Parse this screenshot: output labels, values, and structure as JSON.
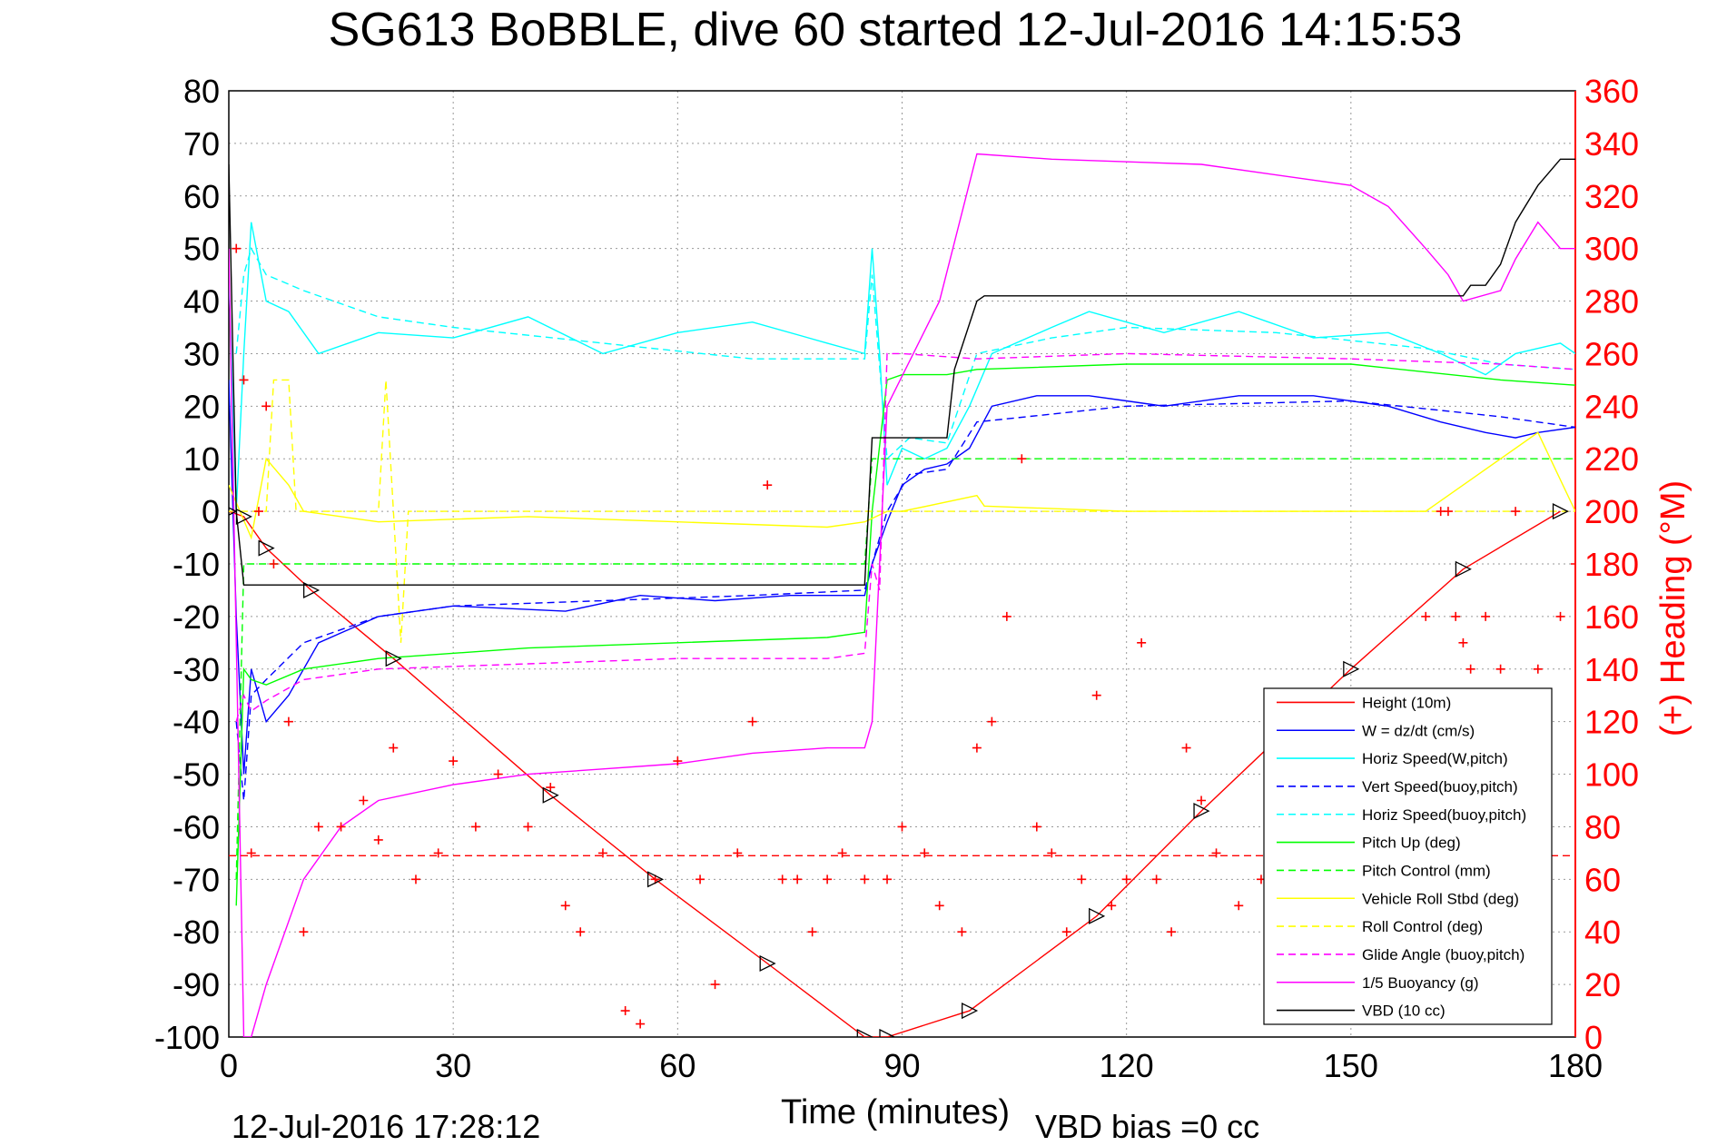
{
  "figure": {
    "title": "SG613 BoBBLE, dive 60 started 12-Jul-2016 14:15:53",
    "footer_left": "12-Jul-2016 17:28:12",
    "footer_right": "VBD bias =0 cc",
    "colors": {
      "height": "#ff0000",
      "w": "#0000ff",
      "horiz": "#00ffff",
      "pitch": "#00ff00",
      "roll": "#ffff00",
      "glide": "#ff00ff",
      "buoy": "#ff00ff",
      "vbd": "#000000",
      "heading": "#ff0000"
    }
  },
  "chart_data": {
    "type": "line",
    "xlabel": "Time (minutes)",
    "ylabel_right": "(+) Heading (°M)",
    "xlim": [
      0,
      180
    ],
    "ylim": [
      -100,
      80
    ],
    "y2lim": [
      0,
      360
    ],
    "xticks": [
      "0",
      "30",
      "60",
      "90",
      "120",
      "150",
      "180"
    ],
    "yticks": [
      "-100",
      "-90",
      "-80",
      "-70",
      "-60",
      "-50",
      "-40",
      "-30",
      "-20",
      "-10",
      "0",
      "10",
      "20",
      "30",
      "40",
      "50",
      "60",
      "70",
      "80"
    ],
    "y2ticks": [
      "0",
      "20",
      "40",
      "60",
      "80",
      "100",
      "120",
      "140",
      "160",
      "180",
      "200",
      "220",
      "240",
      "260",
      "280",
      "300",
      "320",
      "340",
      "360"
    ],
    "grid": true,
    "legend_position": "bottom-right",
    "legend": [
      "Height (10m)",
      "W = dz/dt (cm/s)",
      "Horiz Speed(W,pitch)",
      "Vert Speed(buoy,pitch)",
      "Horiz Speed(buoy,pitch)",
      "Pitch Up (deg)",
      "Pitch Control (mm)",
      "Vehicle Roll Stbd (deg)",
      "Roll Control (deg)",
      "Glide Angle (buoy,pitch)",
      "1/5 Buoyancy (g)",
      "VBD (10 cc)"
    ],
    "series": [
      {
        "name": "Height (10m)",
        "axis": "left",
        "style": "solid",
        "x": [
          0,
          2,
          5,
          11,
          22,
          43,
          57,
          72,
          85,
          88,
          99,
          116,
          130,
          150,
          165,
          178
        ],
        "y": [
          0,
          -1,
          -7,
          -15,
          -28,
          -54,
          -70,
          -86,
          -100,
          -100,
          -95,
          -77,
          -57,
          -30,
          -11,
          0
        ]
      },
      {
        "name": "W = dz/dt (cm/s)",
        "axis": "left",
        "style": "solid",
        "x": [
          0,
          1,
          2,
          3,
          5,
          8,
          12,
          20,
          30,
          45,
          55,
          65,
          75,
          85,
          86,
          88,
          90,
          93,
          96,
          99,
          102,
          108,
          115,
          120,
          125,
          135,
          145,
          155,
          162,
          168,
          172,
          175,
          180
        ],
        "y": [
          25,
          -20,
          -50,
          -30,
          -40,
          -35,
          -25,
          -20,
          -18,
          -19,
          -16,
          -17,
          -16,
          -16,
          -10,
          -2,
          5,
          8,
          9,
          12,
          20,
          22,
          22,
          21,
          20,
          22,
          22,
          20,
          17,
          15,
          14,
          15,
          16
        ]
      },
      {
        "name": "Horiz Speed(W,pitch)",
        "axis": "left",
        "style": "solid",
        "x": [
          0,
          1,
          2,
          3,
          5,
          8,
          12,
          20,
          30,
          40,
          50,
          60,
          70,
          80,
          85,
          86,
          87,
          88,
          90,
          93,
          96,
          99,
          102,
          110,
          115,
          125,
          135,
          145,
          155,
          162,
          168,
          172,
          178,
          180
        ],
        "y": [
          45,
          0,
          30,
          55,
          40,
          38,
          30,
          34,
          33,
          37,
          30,
          34,
          36,
          32,
          30,
          50,
          30,
          5,
          12,
          10,
          12,
          20,
          30,
          35,
          38,
          34,
          38,
          33,
          34,
          30,
          26,
          30,
          32,
          30
        ]
      },
      {
        "name": "Vert Speed(buoy,pitch)",
        "axis": "left",
        "style": "dashed",
        "x": [
          1,
          2,
          3,
          5,
          10,
          20,
          30,
          50,
          70,
          85,
          88,
          91,
          96,
          100,
          120,
          150,
          170,
          180
        ],
        "y": [
          -40,
          -55,
          -35,
          -32,
          -25,
          -20,
          -18,
          -17,
          -16,
          -15,
          0,
          7,
          8,
          17,
          20,
          21,
          18,
          16
        ]
      },
      {
        "name": "Horiz Speed(buoy,pitch)",
        "axis": "left",
        "style": "dashed",
        "x": [
          1,
          2,
          3,
          5,
          10,
          20,
          30,
          50,
          70,
          85,
          86,
          88,
          91,
          96,
          100,
          110,
          120,
          140,
          160,
          170,
          180
        ],
        "y": [
          30,
          45,
          50,
          45,
          42,
          37,
          35,
          32,
          29,
          29,
          45,
          10,
          14,
          13,
          30,
          33,
          35,
          34,
          31,
          28,
          27
        ]
      },
      {
        "name": "Pitch Up (deg)",
        "axis": "left",
        "style": "solid",
        "x": [
          1,
          2,
          3,
          5,
          10,
          20,
          40,
          60,
          80,
          85,
          86,
          88,
          90,
          96,
          100,
          120,
          150,
          170,
          180
        ],
        "y": [
          -75,
          -30,
          -32,
          -33,
          -30,
          -28,
          -26,
          -25,
          -24,
          -23,
          0,
          25,
          26,
          26,
          27,
          28,
          28,
          25,
          24
        ]
      },
      {
        "name": "Pitch Control (mm)",
        "axis": "left",
        "style": "dashed",
        "x": [
          1,
          2,
          5,
          85,
          86,
          88,
          100,
          180
        ],
        "y": [
          -70,
          -10,
          -10,
          -10,
          10,
          10,
          10,
          10
        ]
      },
      {
        "name": "Vehicle Roll Stbd (deg)",
        "axis": "left",
        "style": "solid",
        "x": [
          0,
          3,
          5,
          8,
          10,
          20,
          40,
          60,
          80,
          85,
          88,
          90,
          100,
          101,
          120,
          140,
          160,
          175,
          180
        ],
        "y": [
          5,
          -5,
          10,
          5,
          0,
          -2,
          -1,
          -2,
          -3,
          -2,
          0,
          0,
          3,
          1,
          0,
          0,
          0,
          15,
          0
        ]
      },
      {
        "name": "Roll Control (deg)",
        "axis": "left",
        "style": "dashed",
        "x": [
          0,
          5,
          6,
          8,
          9,
          10,
          20,
          21,
          22,
          23,
          24,
          25,
          85,
          86,
          95,
          96,
          105,
          106,
          120,
          121,
          180
        ],
        "y": [
          0,
          0,
          25,
          25,
          0,
          0,
          0,
          25,
          0,
          -25,
          0,
          0,
          0,
          0,
          0,
          0,
          0,
          0,
          0,
          0,
          0
        ]
      },
      {
        "name": "Glide Angle (buoy,pitch)",
        "axis": "left",
        "style": "dashed",
        "x": [
          1,
          2,
          3,
          5,
          10,
          20,
          40,
          60,
          80,
          85,
          86,
          87,
          88,
          90,
          100,
          120,
          150,
          170,
          180
        ],
        "y": [
          -40,
          -35,
          -38,
          -36,
          -32,
          -30,
          -29,
          -28,
          -28,
          -27,
          -10,
          -15,
          30,
          30,
          29,
          30,
          29,
          28,
          27
        ]
      },
      {
        "name": "1/5 Buoyancy (g)",
        "axis": "left",
        "style": "solid",
        "x": [
          0,
          2,
          3,
          5,
          10,
          15,
          20,
          30,
          40,
          50,
          60,
          70,
          80,
          85,
          86,
          88,
          95,
          100,
          110,
          130,
          150,
          155,
          160,
          163,
          165,
          170,
          172,
          175,
          178,
          180
        ],
        "y": [
          50,
          -100,
          -100,
          -90,
          -70,
          -60,
          -55,
          -52,
          -50,
          -49,
          -48,
          -46,
          -45,
          -45,
          -40,
          20,
          40,
          68,
          67,
          66,
          62,
          58,
          50,
          45,
          40,
          42,
          48,
          55,
          50,
          50
        ]
      },
      {
        "name": "VBD (10 cc)",
        "axis": "left",
        "style": "solid",
        "x": [
          0,
          1,
          2,
          3,
          85,
          86,
          90,
          96,
          97,
          100,
          101,
          165,
          166,
          168,
          170,
          172,
          175,
          178,
          180
        ],
        "y": [
          66,
          0,
          -14,
          -14,
          -14,
          14,
          14,
          14,
          27,
          40,
          41,
          41,
          43,
          43,
          47,
          55,
          62,
          67,
          67
        ]
      },
      {
        "name": "(+) Heading (°M)",
        "axis": "right",
        "style": "markers",
        "x": [
          1,
          2,
          3,
          4,
          5,
          6,
          8,
          10,
          12,
          15,
          18,
          20,
          22,
          25,
          28,
          30,
          33,
          36,
          40,
          43,
          45,
          47,
          50,
          53,
          55,
          57,
          60,
          63,
          65,
          68,
          70,
          72,
          74,
          76,
          78,
          80,
          82,
          85,
          88,
          90,
          93,
          95,
          98,
          100,
          102,
          104,
          106,
          108,
          110,
          112,
          114,
          116,
          118,
          120,
          122,
          124,
          126,
          128,
          130,
          132,
          135,
          138,
          140,
          142,
          145,
          148,
          150,
          152,
          155,
          158,
          160,
          162,
          163,
          164,
          165,
          166,
          168,
          170,
          172,
          175,
          178,
          180
        ],
        "y": [
          300,
          250,
          70,
          200,
          240,
          180,
          120,
          40,
          80,
          80,
          90,
          75,
          110,
          60,
          70,
          105,
          80,
          100,
          80,
          95,
          50,
          40,
          70,
          10,
          5,
          60,
          105,
          60,
          20,
          70,
          120,
          210,
          60,
          60,
          40,
          60,
          70,
          60,
          60,
          80,
          70,
          50,
          40,
          110,
          120,
          160,
          220,
          80,
          70,
          40,
          60,
          130,
          50,
          60,
          150,
          60,
          40,
          110,
          90,
          70,
          50,
          60,
          55,
          60,
          70,
          50,
          60,
          80,
          50,
          60,
          160,
          200,
          200,
          160,
          150,
          140,
          160,
          140,
          200,
          140,
          160,
          180
        ]
      }
    ]
  }
}
